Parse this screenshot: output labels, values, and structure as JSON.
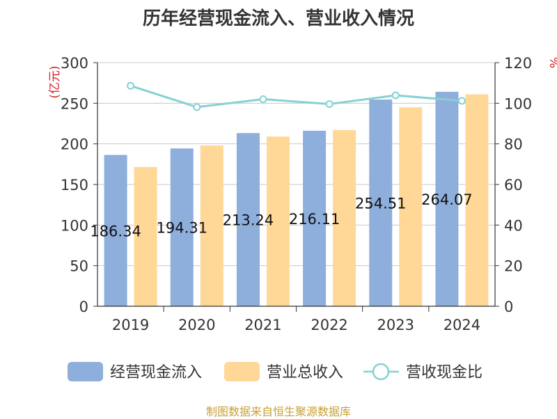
{
  "chart_data": {
    "type": "bar",
    "title": "历年经营现金流入、营业收入情况",
    "categories": [
      "2019",
      "2020",
      "2021",
      "2022",
      "2023",
      "2024"
    ],
    "series": [
      {
        "name": "经营现金流入",
        "type": "bar",
        "axis": "left",
        "color": "#8eaedb",
        "values": [
          186.34,
          194.31,
          213.24,
          216.11,
          254.51,
          264.07
        ]
      },
      {
        "name": "营业总收入",
        "type": "bar",
        "axis": "left",
        "color": "#ffd898",
        "values": [
          171.5,
          198.0,
          209.0,
          217.0,
          245.0,
          261.0
        ]
      },
      {
        "name": "营收现金比",
        "type": "line",
        "axis": "right",
        "color": "#85d1d3",
        "values": [
          108.6,
          98.1,
          102.0,
          99.6,
          103.9,
          101.2
        ]
      }
    ],
    "data_labels": [
      "186.34",
      "194.31",
      "213.24",
      "216.11",
      "254.51",
      "264.07"
    ],
    "y_left": {
      "label": "(亿元)",
      "min": 0,
      "max": 300,
      "ticks": [
        "0",
        "50",
        "100",
        "150",
        "200",
        "250",
        "300"
      ]
    },
    "y_right": {
      "label": "%",
      "min": 0,
      "max": 120,
      "ticks": [
        "0",
        "20",
        "40",
        "60",
        "80",
        "100",
        "120"
      ]
    },
    "grid": true,
    "legend_position": "bottom",
    "footer": "制图数据来自恒生聚源数据库"
  }
}
